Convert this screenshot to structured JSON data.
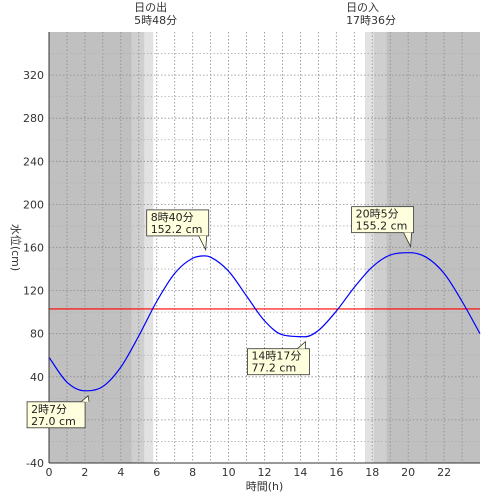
{
  "chart_data": {
    "type": "line",
    "xlabel": "時間(h)",
    "ylabel": "水位(cm)",
    "xlim": [
      0,
      24
    ],
    "ylim": [
      -40,
      360
    ],
    "xticks": [
      0,
      2,
      4,
      6,
      8,
      10,
      12,
      14,
      16,
      18,
      20,
      22
    ],
    "yticks": [
      -40,
      0,
      40,
      80,
      120,
      160,
      200,
      240,
      280,
      320
    ],
    "grid": true,
    "reference_line": {
      "y": 103,
      "color": "#ff0000"
    },
    "sunrise": {
      "label": "日の出",
      "time_text": "5時48分",
      "hour": 5.8
    },
    "sunset": {
      "label": "日の入",
      "time_text": "17時36分",
      "hour": 17.6
    },
    "series": [
      {
        "color": "#0000ff",
        "points": [
          [
            0,
            58
          ],
          [
            1,
            35
          ],
          [
            2,
            27
          ],
          [
            2.12,
            27.0
          ],
          [
            3,
            31
          ],
          [
            4,
            49
          ],
          [
            5,
            78
          ],
          [
            6,
            110
          ],
          [
            7,
            136
          ],
          [
            8,
            150
          ],
          [
            8.67,
            152.2
          ],
          [
            9,
            151
          ],
          [
            10,
            138
          ],
          [
            11,
            115
          ],
          [
            12,
            92
          ],
          [
            13,
            79
          ],
          [
            14.28,
            77.2
          ],
          [
            15,
            83
          ],
          [
            16,
            101
          ],
          [
            17,
            123
          ],
          [
            18,
            142
          ],
          [
            19,
            153
          ],
          [
            20.08,
            155.2
          ],
          [
            21,
            151
          ],
          [
            22,
            136
          ],
          [
            23,
            110
          ],
          [
            24,
            80
          ]
        ]
      }
    ],
    "annotations": [
      {
        "time": "2時7分",
        "value": "27.0 cm",
        "x": 2.12,
        "y": 27.0
      },
      {
        "time": "8時40分",
        "value": "152.2 cm",
        "x": 8.67,
        "y": 152.2
      },
      {
        "time": "14時17分",
        "value": "77.2 cm",
        "x": 14.28,
        "y": 77.2
      },
      {
        "time": "20時5分",
        "value": "155.2 cm",
        "x": 20.08,
        "y": 155.2
      }
    ]
  }
}
